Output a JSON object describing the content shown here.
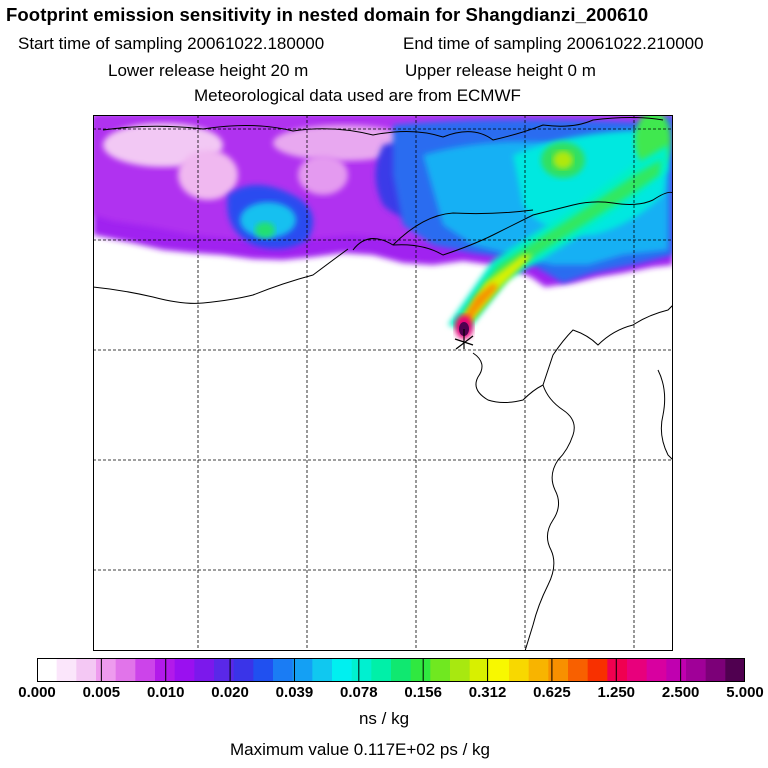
{
  "header": {
    "title": "Footprint emission sensitivity in nested domain for Shangdianzi_200610",
    "start_label": "Start time of sampling 20061022.180000",
    "end_label": "End time of sampling 20061022.210000",
    "lower_label": "Lower release height   20 m",
    "upper_label": "Upper release height    0 m",
    "met_label": "Meteorological data used are from ECMWF"
  },
  "colors": {
    "scale": [
      "#ffffff",
      "#fbe6fb",
      "#f4c8f4",
      "#ee9bee",
      "#e174ea",
      "#cc44ea",
      "#b21aea",
      "#9a10f0",
      "#7c18ec",
      "#5a28e8",
      "#3a34e8",
      "#2050f0",
      "#1a7cf4",
      "#14a0f4",
      "#10c8f0",
      "#00f0f0",
      "#00f0d0",
      "#00f0a8",
      "#10e870",
      "#30e840",
      "#70e820",
      "#a8e810",
      "#d8f000",
      "#f8f800",
      "#f8d800",
      "#f8b400",
      "#f89000",
      "#f86000",
      "#f83000",
      "#f00050",
      "#e8007c",
      "#d800a0",
      "#c000b0",
      "#a00098",
      "#7c0078",
      "#500050"
    ],
    "grid": "#000000",
    "coast": "#000000"
  },
  "legend": {
    "ticks": [
      "0.000",
      "0.005",
      "0.010",
      "0.020",
      "0.039",
      "0.078",
      "0.156",
      "0.312",
      "0.625",
      "1.250",
      "2.500",
      "5.000"
    ],
    "unit": "ns / kg",
    "max_value": "Maximum value  0.117E+02 ps / kg"
  },
  "map": {
    "receptor_marker": "star-marker"
  }
}
